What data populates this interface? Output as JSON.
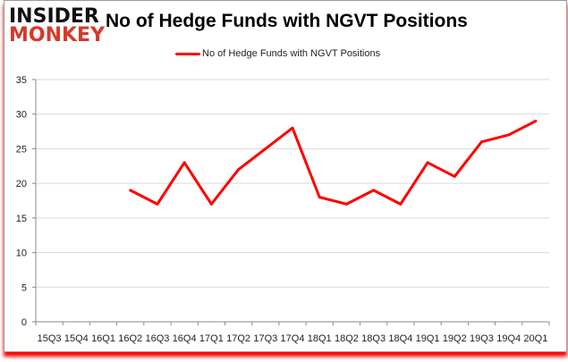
{
  "logo": {
    "line1": "INSIDER",
    "line2": "MONKEY"
  },
  "chart_data": {
    "type": "line",
    "title": "No of Hedge Funds with NGVT Positions",
    "xlabel": "",
    "ylabel": "",
    "categories": [
      "15Q3",
      "15Q4",
      "16Q1",
      "16Q2",
      "16Q3",
      "16Q4",
      "17Q1",
      "17Q2",
      "17Q3",
      "17Q4",
      "18Q1",
      "18Q2",
      "18Q3",
      "18Q4",
      "19Q1",
      "19Q2",
      "19Q3",
      "19Q4",
      "20Q1"
    ],
    "series": [
      {
        "name": "No of Hedge Funds with NGVT Positions",
        "color": "#ff0000",
        "values": [
          null,
          null,
          null,
          19,
          17,
          23,
          17,
          22,
          25,
          28,
          18,
          17,
          19,
          17,
          23,
          21,
          26,
          27,
          29
        ]
      }
    ],
    "ylim": [
      0,
      35
    ],
    "yticks": [
      0,
      5,
      10,
      15,
      20,
      25,
      30,
      35
    ],
    "grid": true,
    "legend": "top-center"
  }
}
